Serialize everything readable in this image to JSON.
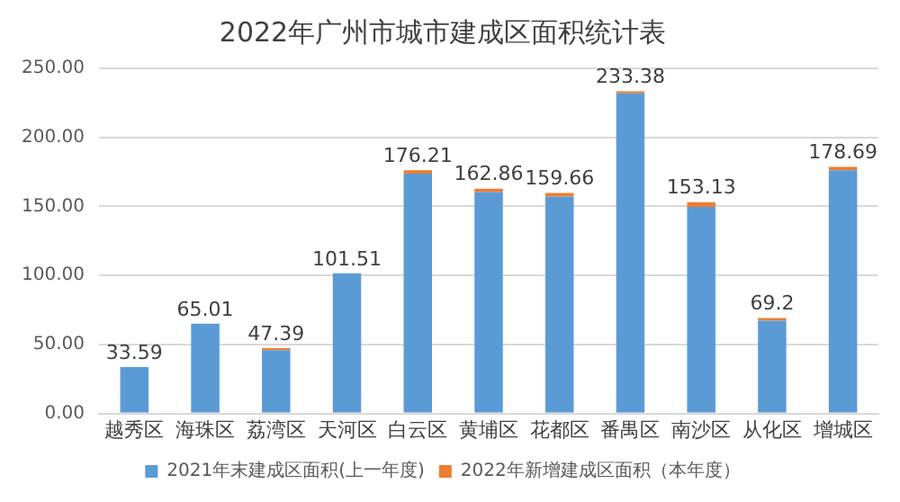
{
  "chart_data": {
    "type": "bar",
    "title": "2022年广州市城市建成区面积统计表",
    "categories": [
      "越秀区",
      "海珠区",
      "荔湾区",
      "天河区",
      "白云区",
      "黄埔区",
      "花都区",
      "番禺区",
      "南沙区",
      "从化区",
      "增城区"
    ],
    "series": [
      {
        "name": "2021年末建成区面积(上一年度)",
        "color": "#5b9bd5",
        "values": [
          33.59,
          65.01,
          45.9,
          101.51,
          173.7,
          160.4,
          157.2,
          231.9,
          149.6,
          67.2,
          176.2
        ]
      },
      {
        "name": "2022年新增建成区面积（本年度）",
        "color": "#ed7d31",
        "values": [
          0,
          0,
          1.49,
          0,
          2.51,
          2.46,
          2.46,
          1.48,
          3.53,
          2.0,
          2.49
        ]
      }
    ],
    "stacked": true,
    "totals": [
      "33.59",
      "65.01",
      "47.39",
      "101.51",
      "176.21",
      "162.86",
      "159.66",
      "233.38",
      "153.13",
      "69.2",
      "178.69"
    ],
    "ylim": [
      0,
      250
    ],
    "yticks": [
      {
        "value": 0,
        "label": "0.00"
      },
      {
        "value": 50,
        "label": "50.00"
      },
      {
        "value": 100,
        "label": "100.00"
      },
      {
        "value": 150,
        "label": "150.00"
      },
      {
        "value": 200,
        "label": "200.00"
      },
      {
        "value": 250,
        "label": "250.00"
      }
    ],
    "grid": "y",
    "legend": "bottom"
  }
}
